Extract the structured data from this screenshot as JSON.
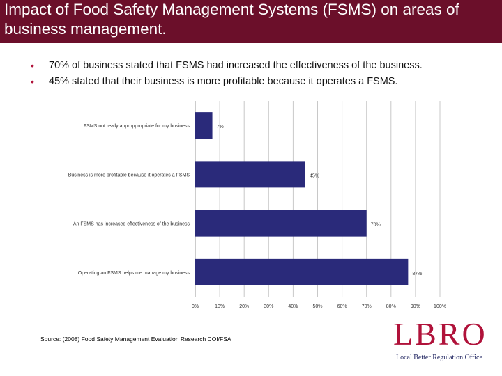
{
  "slide": {
    "title": "Impact of Food Safety Management Systems (FSMS) on areas of business management.",
    "bullets": [
      "70% of business stated that FSMS had increased the effectiveness of the business.",
      "45% stated that their business is more profitable because it operates a FSMS."
    ],
    "source": "Source: (2008) Food Safety Management Evaluation Research COI/FSA",
    "logo_text": "LBRO",
    "logo_tagline": "Local Better Regulation Office"
  },
  "colors": {
    "title_bar": "#6b0f2a",
    "bullet": "#b0123a",
    "bar": "#2a2a7a",
    "logo": "#b0123a"
  },
  "chart_data": {
    "type": "bar",
    "orientation": "horizontal",
    "categories": [
      "FSMS not really approppropriate for my business",
      "Business is more profitable because it operates a FSMS",
      "An FSMS has increased effectiveness of the business",
      "Operating an FSMS helps me manage my business"
    ],
    "values": [
      7,
      45,
      70,
      87
    ],
    "data_labels": [
      "7%",
      "45%",
      "70%",
      "87%"
    ],
    "xlim": [
      0,
      100
    ],
    "xticks": [
      "0%",
      "10%",
      "20%",
      "30%",
      "40%",
      "50%",
      "60%",
      "70%",
      "80%",
      "90%",
      "100%"
    ],
    "grid": "vertical"
  }
}
